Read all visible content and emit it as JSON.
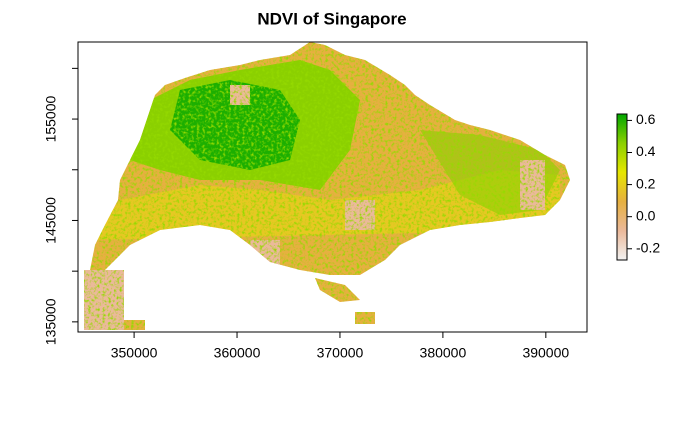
{
  "chart_data": {
    "type": "raster",
    "title": "NDVI of Singapore",
    "xlim": [
      344550,
      394000
    ],
    "ylim": [
      134000,
      162600
    ],
    "xticks": [
      350000,
      360000,
      370000,
      380000,
      390000
    ],
    "yticks": [
      135000,
      {
        "value": 140000,
        "label": null
      },
      145000,
      {
        "value": 150000,
        "label": null
      },
      155000,
      {
        "value": 160000,
        "label": null
      }
    ],
    "colorbar": {
      "zlim": [
        -0.27,
        0.64
      ],
      "ticks": [
        -0.2,
        {
          "value": 0,
          "label": "0.0"
        },
        0.2,
        0.4,
        0.6
      ],
      "colors": [
        "#f2f2f2",
        "#ebb99a",
        "#e6b040",
        "#e6e600",
        "#8bd000",
        "#00a600"
      ]
    }
  }
}
